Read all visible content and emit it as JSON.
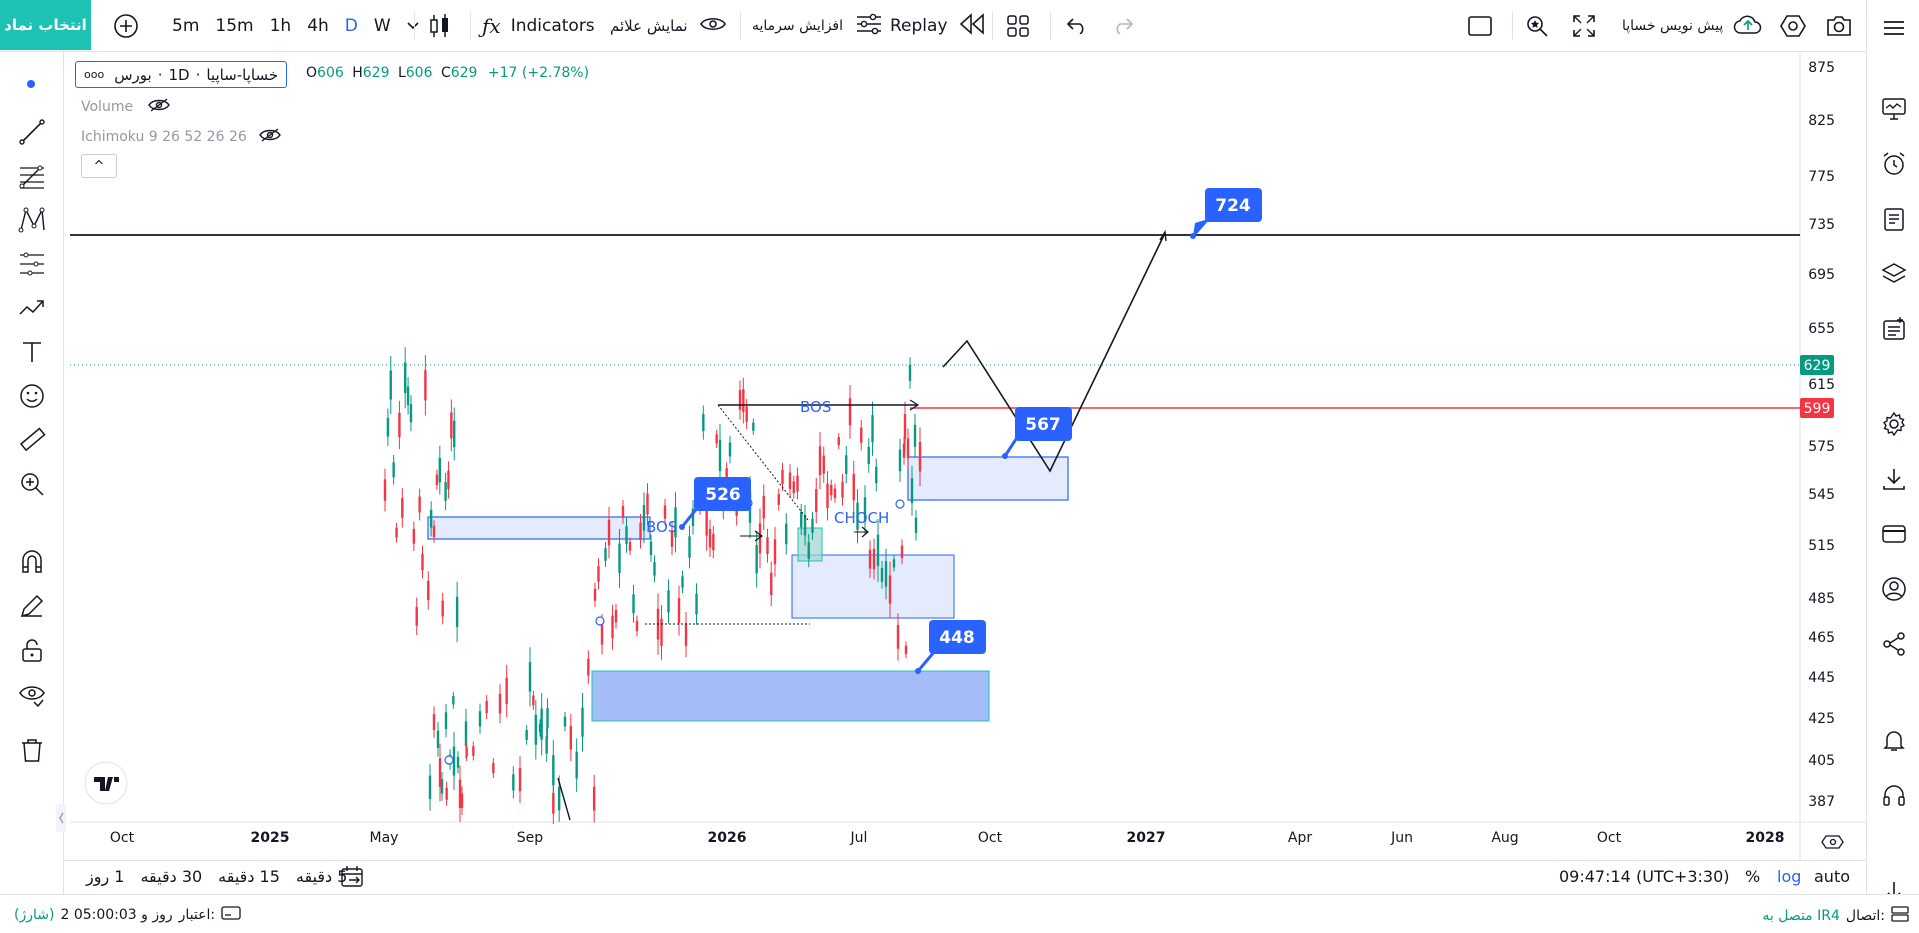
{
  "topbar": {
    "symbol_button": "انتخاب نماد",
    "intervals": [
      "5m",
      "15m",
      "1h",
      "4h",
      "D",
      "W"
    ],
    "active_interval": "D",
    "indicators_label": "Indicators",
    "show_signals_label": "نمایش علائم",
    "capital_increase_label": "افزایش سرمایه",
    "replay_label": "Replay",
    "draft_label": "پیش نویس خساپا"
  },
  "legend": {
    "symbol": "خساپا-ساپیا",
    "dot": "·",
    "interval": "1D",
    "exchange": "بورس",
    "dots": "ooo",
    "ohlc_open_k": "O",
    "ohlc_open_v": "606",
    "ohlc_high_k": "H",
    "ohlc_high_v": "629",
    "ohlc_low_k": "L",
    "ohlc_low_v": "606",
    "ohlc_close_k": "C",
    "ohlc_close_v": "629",
    "ohlc_change": "+17 (+2.78%)",
    "volume_label": "Volume",
    "ichimoku_label": "Ichimoku 9 26 52 26 26",
    "collapse_glyph": "^"
  },
  "price_axis": {
    "ticks": [
      "875",
      "825",
      "775",
      "735",
      "695",
      "655",
      "615",
      "575",
      "545",
      "515",
      "485",
      "465",
      "445",
      "425",
      "405",
      "387"
    ],
    "current_price": "629",
    "red_line_price": "599",
    "current_price_color": "#089981",
    "red_line_color": "#f23645"
  },
  "time_axis": {
    "ticks": [
      "Oct",
      "2025",
      "May",
      "Sep",
      "2026",
      "Jul",
      "Oct",
      "2027",
      "Apr",
      "Jun",
      "Aug",
      "Oct",
      "2028"
    ]
  },
  "annotations": {
    "callouts": [
      "724",
      "567",
      "526",
      "448"
    ],
    "bos_1": "BOS",
    "bos_2": "BOS",
    "choch": "CHOCH"
  },
  "bottombar": {
    "range_buttons": [
      "5 دقیقه",
      "15 دقیقه",
      "30 دقیقه",
      "1 روز"
    ],
    "clock": "09:47:14 (UTC+3:30)",
    "percent": "%",
    "log": "log",
    "auto": "auto"
  },
  "statusbar": {
    "connection_label": "اتصال:",
    "connection_value": "متصل به IR4",
    "credit_label": "اعتبار:",
    "credit_value": "2 روز و 05:00:03",
    "recharge": "(شارژ)"
  },
  "colors": {
    "accent": "#2962ff",
    "teal": "#1ec2b4",
    "up": "#089981",
    "down": "#f23645"
  }
}
